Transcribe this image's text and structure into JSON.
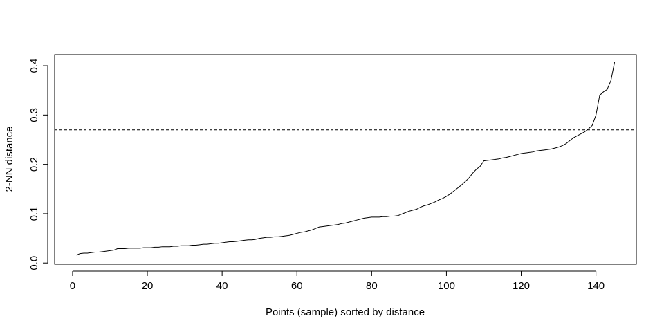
{
  "chart_data": {
    "type": "line",
    "title": "",
    "xlabel": "Points (sample) sorted by distance",
    "ylabel": "2-NN distance",
    "xlim": [
      -4.8,
      150.8
    ],
    "ylim": [
      -0.0025,
      0.4225
    ],
    "xticks": [
      0,
      20,
      40,
      60,
      80,
      100,
      120,
      140
    ],
    "yticks": [
      0.0,
      0.1,
      0.2,
      0.3,
      0.4
    ],
    "ytick_labels": [
      "0.0",
      "0.1",
      "0.2",
      "0.3",
      "0.4"
    ],
    "grid": false,
    "legend": "none",
    "colors": {
      "line": "#000000",
      "threshold": "#000000",
      "axis": "#000000"
    },
    "threshold": {
      "y": 0.27,
      "style": "dashed"
    },
    "series": [
      {
        "x": [
          1,
          2,
          3,
          4,
          5,
          6,
          7,
          8,
          9,
          10,
          11,
          12,
          13,
          14,
          15,
          16,
          17,
          18,
          19,
          20,
          21,
          22,
          23,
          24,
          25,
          26,
          27,
          28,
          29,
          30,
          31,
          32,
          33,
          34,
          35,
          36,
          37,
          38,
          39,
          40,
          41,
          42,
          43,
          44,
          45,
          46,
          47,
          48,
          49,
          50,
          51,
          52,
          53,
          54,
          55,
          56,
          57,
          58,
          59,
          60,
          61,
          62,
          63,
          64,
          65,
          66,
          67,
          68,
          69,
          70,
          71,
          72,
          73,
          74,
          75,
          76,
          77,
          78,
          79,
          80,
          81,
          82,
          83,
          84,
          85,
          86,
          87,
          88,
          89,
          90,
          91,
          92,
          93,
          94,
          95,
          96,
          97,
          98,
          99,
          100,
          101,
          102,
          103,
          104,
          105,
          106,
          107,
          108,
          109,
          110,
          111,
          112,
          113,
          114,
          115,
          116,
          117,
          118,
          119,
          120,
          121,
          122,
          123,
          124,
          125,
          126,
          127,
          128,
          129,
          130,
          131,
          132,
          133,
          134,
          135,
          136,
          137,
          138,
          139,
          140,
          141,
          142,
          143,
          144,
          145
        ],
        "y": [
          0.016,
          0.019,
          0.02,
          0.02,
          0.021,
          0.022,
          0.022,
          0.023,
          0.024,
          0.025,
          0.026,
          0.029,
          0.029,
          0.029,
          0.03,
          0.03,
          0.03,
          0.03,
          0.031,
          0.031,
          0.031,
          0.032,
          0.032,
          0.033,
          0.033,
          0.033,
          0.034,
          0.034,
          0.035,
          0.035,
          0.035,
          0.036,
          0.036,
          0.037,
          0.038,
          0.038,
          0.039,
          0.04,
          0.04,
          0.041,
          0.042,
          0.043,
          0.043,
          0.044,
          0.045,
          0.046,
          0.047,
          0.047,
          0.048,
          0.05,
          0.051,
          0.052,
          0.052,
          0.053,
          0.053,
          0.054,
          0.055,
          0.056,
          0.058,
          0.06,
          0.062,
          0.063,
          0.065,
          0.067,
          0.07,
          0.073,
          0.074,
          0.075,
          0.076,
          0.077,
          0.078,
          0.08,
          0.081,
          0.083,
          0.085,
          0.087,
          0.089,
          0.091,
          0.092,
          0.093,
          0.093,
          0.093,
          0.094,
          0.094,
          0.095,
          0.095,
          0.096,
          0.099,
          0.102,
          0.105,
          0.107,
          0.109,
          0.113,
          0.116,
          0.118,
          0.121,
          0.124,
          0.128,
          0.131,
          0.135,
          0.14,
          0.146,
          0.152,
          0.158,
          0.165,
          0.172,
          0.182,
          0.19,
          0.196,
          0.207,
          0.208,
          0.209,
          0.21,
          0.211,
          0.213,
          0.214,
          0.216,
          0.218,
          0.22,
          0.222,
          0.223,
          0.224,
          0.225,
          0.227,
          0.228,
          0.229,
          0.23,
          0.231,
          0.233,
          0.235,
          0.238,
          0.242,
          0.248,
          0.254,
          0.258,
          0.262,
          0.266,
          0.272,
          0.279,
          0.3,
          0.34,
          0.347,
          0.352,
          0.37,
          0.408
        ]
      }
    ]
  }
}
